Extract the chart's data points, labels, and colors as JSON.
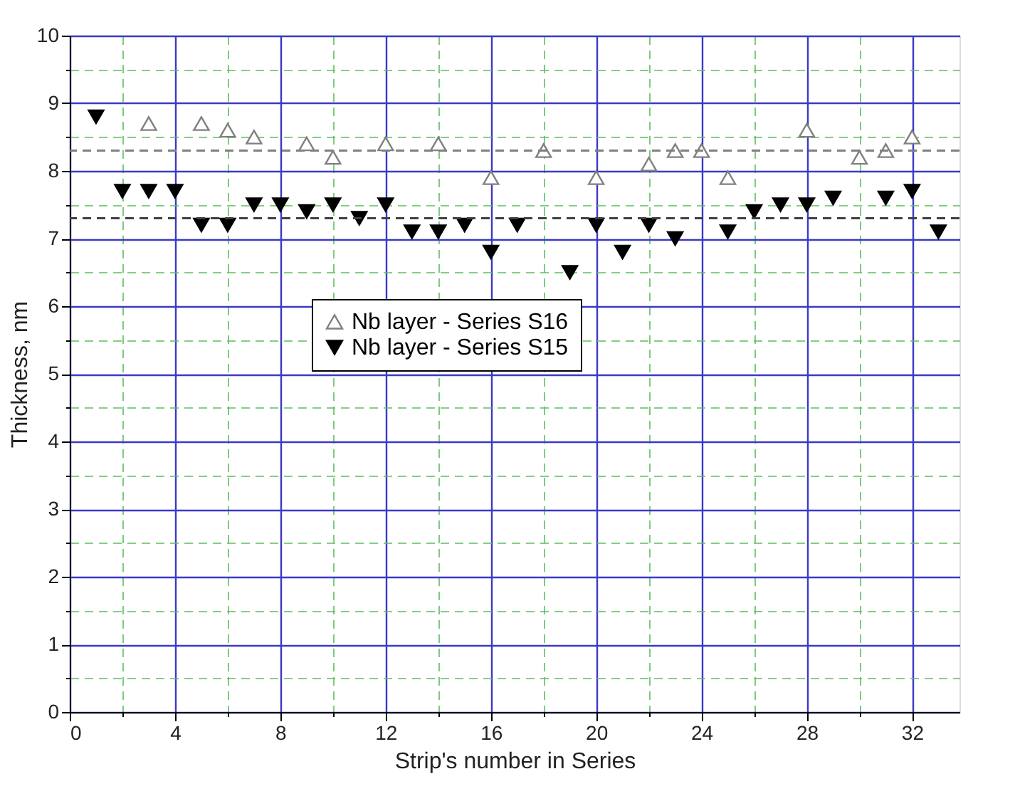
{
  "chart_data": {
    "type": "scatter",
    "xlabel": "Strip's number in Series",
    "ylabel": "Thickness, nm",
    "xlim": [
      0,
      33.8
    ],
    "ylim": [
      0,
      10
    ],
    "xticks": [
      0,
      {
        "value": 2,
        "label": null
      },
      4,
      {
        "value": 6,
        "label": null
      },
      8,
      {
        "value": 10,
        "label": null
      },
      12,
      {
        "value": 14,
        "label": null
      },
      16,
      {
        "value": 18,
        "label": null
      },
      20,
      {
        "value": 22,
        "label": null
      },
      24,
      {
        "value": 26,
        "label": null
      },
      28,
      {
        "value": 30,
        "label": null
      },
      32
    ],
    "yticks": [
      0,
      {
        "value": 0.5,
        "label": null
      },
      1,
      {
        "value": 1.5,
        "label": null
      },
      2,
      {
        "value": 2.5,
        "label": null
      },
      3,
      {
        "value": 3.5,
        "label": null
      },
      4,
      {
        "value": 4.5,
        "label": null
      },
      5,
      {
        "value": 5.5,
        "label": null
      },
      6,
      {
        "value": 6.5,
        "label": null
      },
      7,
      {
        "value": 7.5,
        "label": null
      },
      8,
      {
        "value": 8.5,
        "label": null
      },
      9,
      {
        "value": 9.5,
        "label": null
      },
      10
    ],
    "grid": true,
    "legend": "center",
    "series": [
      {
        "name": "Nb layer - Series S16",
        "color": "#808080",
        "marker": "triangle",
        "x": [
          3,
          5,
          6,
          7,
          9,
          10,
          12,
          14,
          16,
          18,
          20,
          22,
          23,
          24,
          25,
          28,
          30,
          31,
          32
        ],
        "values": [
          8.7,
          8.7,
          8.6,
          8.5,
          8.4,
          8.2,
          8.4,
          8.4,
          7.9,
          8.3,
          7.9,
          8.1,
          8.3,
          8.3,
          7.9,
          8.6,
          8.2,
          8.3,
          8.5
        ]
      },
      {
        "name": "Nb layer - Series S15",
        "color": "#000000",
        "marker": "triangle-down",
        "x": [
          1,
          2,
          3,
          4,
          5,
          6,
          7,
          8,
          9,
          10,
          11,
          12,
          13,
          14,
          15,
          16,
          17,
          19,
          20,
          21,
          22,
          23,
          25,
          26,
          27,
          28,
          29,
          31,
          32,
          33
        ],
        "values": [
          8.8,
          7.7,
          7.7,
          7.7,
          7.2,
          7.2,
          7.5,
          7.5,
          7.4,
          7.5,
          7.3,
          7.5,
          7.1,
          7.1,
          7.2,
          6.8,
          7.2,
          6.5,
          7.2,
          6.8,
          7.2,
          7.0,
          7.1,
          7.4,
          7.5,
          7.5,
          7.6,
          7.6,
          7.7,
          7.1
        ]
      }
    ],
    "ref_lines": [
      {
        "axis": "y",
        "value": 8.3,
        "color": "#808080",
        "line_style": "dashed"
      },
      {
        "axis": "y",
        "value": 7.3,
        "color": "#404040",
        "line_style": "dashed"
      }
    ]
  }
}
